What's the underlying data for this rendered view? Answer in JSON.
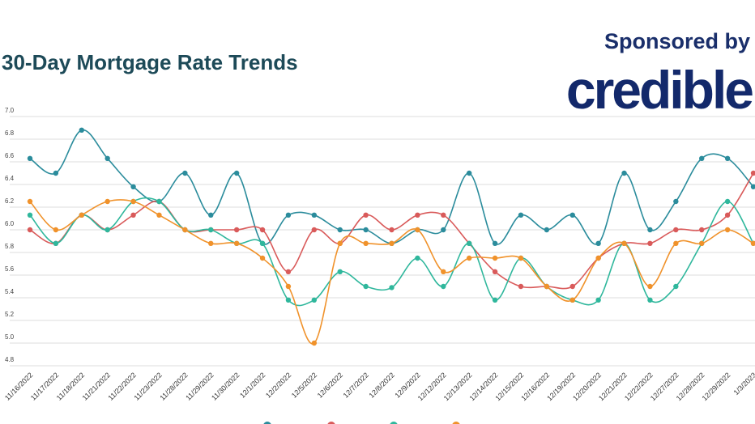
{
  "chart_data": {
    "type": "line",
    "title": "30-Day Mortgage Rate Trends",
    "sponsor": "Sponsored by",
    "logo": "credible",
    "categories": [
      "11/16/2022",
      "11/17/2022",
      "11/18/2022",
      "11/21/2022",
      "11/22/2022",
      "11/23/2022",
      "11/28/2022",
      "11/29/2022",
      "11/30/2022",
      "12/1/2022",
      "12/2/2022",
      "12/5/2022",
      "12/6/2022",
      "12/7/2022",
      "12/8/2022",
      "12/9/2022",
      "12/12/2022",
      "12/13/2022",
      "12/14/2022",
      "12/15/2022",
      "12/16/2022",
      "12/19/2022",
      "12/20/2022",
      "12/21/2022",
      "12/22/2022",
      "12/27/2022",
      "12/28/2022",
      "12/29/2022",
      "1/3/2023"
    ],
    "series": [
      {
        "color": "#2b8c9c",
        "values": [
          6.63,
          6.5,
          6.88,
          6.63,
          6.38,
          6.25,
          6.5,
          6.13,
          6.5,
          5.88,
          6.13,
          6.13,
          6.0,
          6.0,
          5.88,
          6.0,
          6.0,
          6.5,
          5.88,
          6.13,
          6.0,
          6.13,
          5.88,
          6.5,
          6.0,
          6.25,
          6.63,
          6.63,
          6.38
        ]
      },
      {
        "color": "#d95a5a",
        "values": [
          6.0,
          5.88,
          6.13,
          6.0,
          6.13,
          6.25,
          6.0,
          6.0,
          6.0,
          6.0,
          5.63,
          6.0,
          5.88,
          6.13,
          6.0,
          6.13,
          6.13,
          5.88,
          5.63,
          5.5,
          5.5,
          5.5,
          5.75,
          5.88,
          5.88,
          6.0,
          6.0,
          6.13,
          6.5
        ]
      },
      {
        "color": "#2fb79c",
        "values": [
          6.13,
          5.88,
          6.13,
          6.0,
          6.25,
          6.25,
          6.0,
          6.0,
          5.88,
          5.88,
          5.38,
          5.38,
          5.63,
          5.5,
          5.49,
          5.75,
          5.5,
          5.88,
          5.38,
          5.75,
          5.5,
          5.38,
          5.38,
          5.88,
          5.38,
          5.5,
          5.88,
          6.25,
          5.88
        ]
      },
      {
        "color": "#f0922b",
        "values": [
          6.25,
          6.0,
          6.13,
          6.25,
          6.25,
          6.13,
          6.0,
          5.88,
          5.88,
          5.75,
          5.5,
          5.0,
          5.88,
          5.88,
          5.88,
          6.0,
          5.63,
          5.75,
          5.75,
          5.75,
          5.5,
          5.38,
          5.75,
          5.88,
          5.5,
          5.88,
          5.88,
          6.0,
          5.88
        ]
      }
    ],
    "ylim": [
      4.8,
      7.0
    ],
    "yticks": [
      4.8,
      {
        "value": 5,
        "label": "5.0"
      },
      5.2,
      5.4,
      5.6,
      5.8,
      {
        "value": 6,
        "label": "6.0"
      },
      6.2,
      6.4,
      6.6,
      6.8,
      {
        "value": 7,
        "label": "7.0"
      }
    ],
    "grid": true
  }
}
